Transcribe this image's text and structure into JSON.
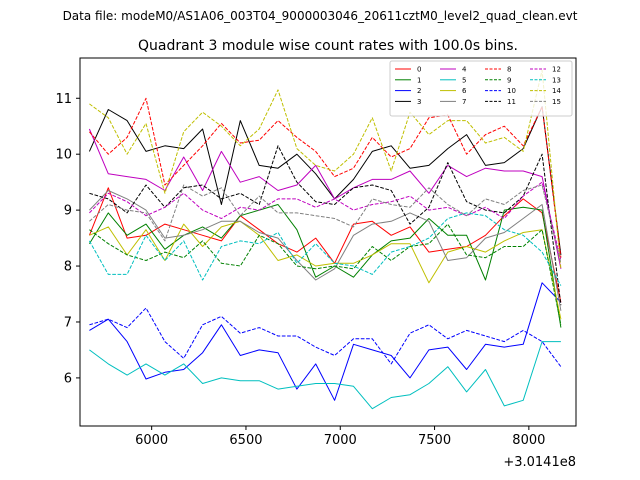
{
  "suptitle": "Data file: modeM0/AS1A06_003T04_9000003046_20611cztM0_level2_quad_clean.evt",
  "chart_data": {
    "type": "line",
    "title": "Quadrant 3 module wise count rates with 100.0s bins.",
    "xlabel": "",
    "ylabel": "",
    "x_offset_label": "+3.0141e8",
    "xlim": [
      5620,
      8250
    ],
    "ylim": [
      5.14,
      11.72
    ],
    "xticks": [
      6000,
      6500,
      7000,
      7500,
      8000
    ],
    "yticks": [
      6,
      7,
      8,
      9,
      10,
      11
    ],
    "xtick_labels": [
      "6000",
      "6500",
      "7000",
      "7500",
      "8000"
    ],
    "ytick_labels": [
      "6",
      "7",
      "8",
      "9",
      "10",
      "11"
    ],
    "x": [
      5670,
      5770,
      5870,
      5970,
      6070,
      6170,
      6270,
      6370,
      6470,
      6570,
      6670,
      6770,
      6870,
      6970,
      7070,
      7170,
      7270,
      7370,
      7470,
      7570,
      7670,
      7770,
      7870,
      7970,
      8070,
      8170
    ],
    "legend_position": "top-right",
    "legend_columns": 4,
    "series": [
      {
        "name": "0",
        "color": "#ff0000",
        "dash": "solid",
        "values": [
          8.55,
          9.4,
          8.5,
          8.55,
          8.75,
          8.65,
          8.55,
          8.45,
          8.9,
          8.65,
          8.4,
          8.25,
          8.5,
          8.05,
          8.75,
          8.8,
          8.55,
          8.7,
          8.25,
          8.3,
          8.35,
          8.55,
          8.9,
          9.2,
          8.95,
          7.35
        ]
      },
      {
        "name": "1",
        "color": "#008000",
        "dash": "solid",
        "values": [
          8.4,
          8.95,
          8.55,
          8.75,
          8.3,
          8.55,
          8.7,
          8.5,
          8.9,
          9.0,
          9.1,
          8.65,
          7.8,
          8.0,
          7.8,
          8.2,
          8.45,
          8.5,
          8.85,
          8.55,
          8.55,
          7.75,
          9.0,
          9.05,
          9.0,
          6.9
        ]
      },
      {
        "name": "2",
        "color": "#0000ff",
        "dash": "solid",
        "values": [
          6.85,
          7.05,
          6.65,
          5.98,
          6.1,
          6.15,
          6.45,
          6.95,
          6.4,
          6.5,
          6.45,
          5.8,
          6.25,
          5.6,
          6.6,
          6.5,
          6.4,
          6.0,
          6.5,
          6.55,
          6.15,
          6.6,
          6.55,
          6.6,
          7.7,
          7.35
        ]
      },
      {
        "name": "3",
        "color": "#000000",
        "dash": "solid",
        "values": [
          10.05,
          10.8,
          10.6,
          10.05,
          10.15,
          10.1,
          10.45,
          9.1,
          10.6,
          9.8,
          9.75,
          10.0,
          9.65,
          9.2,
          9.55,
          10.05,
          10.15,
          9.75,
          9.8,
          10.1,
          10.35,
          9.8,
          9.85,
          10.1,
          10.85,
          8.2
        ]
      },
      {
        "name": "4",
        "color": "#bf00bf",
        "dash": "solid",
        "values": [
          10.45,
          9.65,
          9.6,
          9.55,
          9.35,
          9.95,
          9.35,
          10.05,
          9.5,
          9.6,
          9.35,
          9.45,
          9.8,
          9.2,
          9.4,
          9.55,
          9.55,
          9.7,
          9.3,
          9.8,
          9.6,
          9.75,
          9.7,
          9.7,
          9.6,
          7.95
        ]
      },
      {
        "name": "5",
        "color": "#00bfbf",
        "dash": "solid",
        "values": [
          6.5,
          6.25,
          6.05,
          6.25,
          6.05,
          6.25,
          5.9,
          6.0,
          5.95,
          5.95,
          5.8,
          5.85,
          5.9,
          5.9,
          5.85,
          5.45,
          5.65,
          5.7,
          5.9,
          6.2,
          5.75,
          6.15,
          5.5,
          5.6,
          6.65,
          6.65
        ]
      },
      {
        "name": "6",
        "color": "#bfbf00",
        "dash": "solid",
        "values": [
          8.55,
          8.7,
          8.2,
          8.65,
          8.1,
          8.75,
          8.35,
          8.7,
          8.8,
          8.55,
          8.1,
          8.2,
          8.0,
          8.05,
          8.05,
          8.2,
          8.4,
          8.4,
          7.7,
          8.25,
          8.35,
          8.25,
          8.45,
          8.6,
          8.65,
          7.05
        ]
      },
      {
        "name": "7",
        "color": "#808080",
        "dash": "solid",
        "values": [
          9.0,
          9.35,
          9.2,
          9.0,
          8.5,
          8.55,
          8.65,
          8.8,
          8.8,
          8.6,
          8.5,
          8.1,
          7.75,
          7.95,
          8.55,
          8.75,
          8.8,
          8.95,
          8.8,
          8.1,
          8.15,
          8.5,
          8.6,
          8.85,
          9.1,
          7.2
        ]
      },
      {
        "name": "8",
        "color": "#ff0000",
        "dash": "dashed",
        "values": [
          10.4,
          10.0,
          10.3,
          11.0,
          9.45,
          9.8,
          10.15,
          10.55,
          10.2,
          10.25,
          10.6,
          10.3,
          10.05,
          9.6,
          9.75,
          10.3,
          9.95,
          10.1,
          10.65,
          10.7,
          10.0,
          10.35,
          10.5,
          10.15,
          10.85,
          8.15
        ]
      },
      {
        "name": "9",
        "color": "#008000",
        "dash": "dashed",
        "values": [
          8.65,
          8.4,
          8.2,
          8.1,
          8.25,
          8.15,
          8.45,
          8.05,
          8.0,
          8.55,
          8.4,
          8.0,
          7.95,
          8.0,
          7.95,
          8.35,
          8.1,
          8.35,
          8.4,
          8.75,
          8.2,
          8.15,
          8.35,
          8.35,
          8.65,
          6.95
        ]
      },
      {
        "name": "10",
        "color": "#0000ff",
        "dash": "dashed",
        "values": [
          6.95,
          7.05,
          6.9,
          7.25,
          6.65,
          6.35,
          6.95,
          7.1,
          6.8,
          6.9,
          6.75,
          6.75,
          6.55,
          6.4,
          6.7,
          6.7,
          6.25,
          6.8,
          6.95,
          6.7,
          6.85,
          6.75,
          6.65,
          6.85,
          6.65,
          6.2
        ]
      },
      {
        "name": "11",
        "color": "#000000",
        "dash": "dashed",
        "values": [
          9.3,
          9.2,
          8.95,
          9.45,
          9.05,
          9.4,
          9.45,
          9.2,
          9.3,
          9.1,
          10.15,
          9.5,
          9.15,
          9.1,
          9.4,
          9.45,
          9.35,
          8.75,
          9.05,
          9.85,
          9.15,
          9.0,
          8.95,
          9.25,
          10.0,
          7.3
        ]
      },
      {
        "name": "12",
        "color": "#bf00bf",
        "dash": "dashed",
        "values": [
          8.95,
          9.3,
          9.15,
          8.9,
          9.05,
          9.3,
          9.0,
          8.85,
          9.05,
          9.0,
          9.2,
          9.2,
          9.05,
          9.2,
          9.0,
          9.1,
          9.15,
          9.25,
          9.0,
          9.05,
          8.9,
          9.05,
          8.85,
          9.25,
          9.5,
          8.1
        ]
      },
      {
        "name": "13",
        "color": "#00bfbf",
        "dash": "dashed",
        "values": [
          8.45,
          7.85,
          7.85,
          8.55,
          8.1,
          8.45,
          7.75,
          8.35,
          8.45,
          8.4,
          8.6,
          8.05,
          8.4,
          8.05,
          8.0,
          7.85,
          8.25,
          8.35,
          8.5,
          8.85,
          8.95,
          8.9,
          8.65,
          8.55,
          8.25,
          7.65
        ]
      },
      {
        "name": "14",
        "color": "#bfbf00",
        "dash": "dashed",
        "values": [
          10.9,
          10.65,
          10.0,
          10.55,
          9.3,
          10.4,
          10.75,
          10.5,
          10.15,
          10.45,
          11.15,
          10.1,
          9.8,
          9.7,
          10.0,
          10.65,
          9.7,
          10.75,
          10.35,
          10.6,
          10.6,
          10.2,
          10.3,
          10.05,
          11.5,
          7.95
        ]
      },
      {
        "name": "15",
        "color": "#808080",
        "dash": "dashed",
        "values": [
          8.8,
          9.1,
          9.0,
          8.95,
          8.45,
          9.45,
          9.25,
          9.4,
          8.9,
          9.25,
          8.95,
          8.95,
          8.9,
          8.85,
          8.7,
          9.2,
          9.1,
          9.05,
          9.4,
          9.1,
          8.9,
          9.2,
          9.1,
          9.35,
          9.45,
          8.05
        ]
      }
    ]
  }
}
